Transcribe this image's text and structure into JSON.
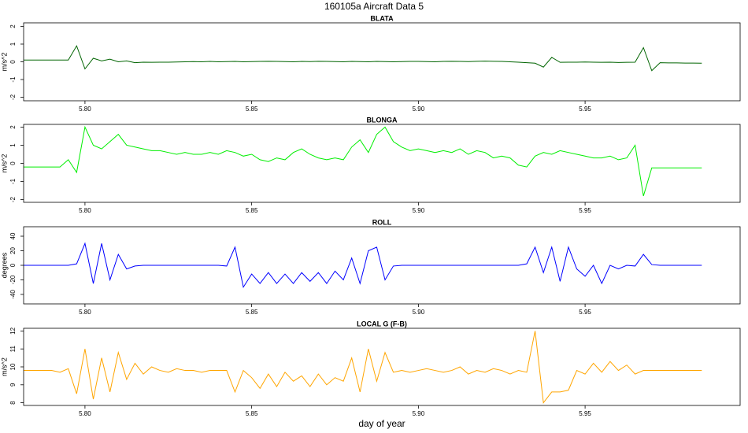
{
  "title": "160105a   Aircraft Data 5",
  "chart_data": [
    {
      "type": "line",
      "title": "BLATA",
      "ylabel": "m/s^2",
      "x": [
        5.78,
        5.7825,
        5.785,
        5.7875,
        5.79,
        5.7925,
        5.795,
        5.7975,
        5.8,
        5.8025,
        5.805,
        5.8075,
        5.81,
        5.8125,
        5.815,
        5.8175,
        5.82,
        5.8225,
        5.825,
        5.8275,
        5.83,
        5.8325,
        5.835,
        5.8375,
        5.84,
        5.8425,
        5.845,
        5.8475,
        5.85,
        5.8525,
        5.855,
        5.8575,
        5.86,
        5.8625,
        5.865,
        5.8675,
        5.87,
        5.8725,
        5.875,
        5.8775,
        5.88,
        5.8825,
        5.885,
        5.8875,
        5.89,
        5.8925,
        5.895,
        5.8975,
        5.9,
        5.9025,
        5.905,
        5.9075,
        5.91,
        5.9125,
        5.915,
        5.9175,
        5.92,
        5.9225,
        5.925,
        5.9275,
        5.93,
        5.9325,
        5.935,
        5.9375,
        5.94,
        5.9425,
        5.945,
        5.9475,
        5.95,
        5.9525,
        5.955,
        5.9575,
        5.96,
        5.9625,
        5.965,
        5.9675,
        5.97,
        5.9725,
        5.975,
        5.9775,
        5.98,
        5.9825,
        5.985
      ],
      "series": [
        {
          "color": "#006400",
          "values": [
            0.1,
            0.1,
            0.1,
            0.1,
            0.1,
            0.1,
            0.1,
            0.9,
            -0.4,
            0.2,
            0.05,
            0.15,
            0.0,
            0.05,
            -0.05,
            -0.02,
            -0.03,
            -0.02,
            -0.02,
            -0.01,
            0.0,
            0.01,
            0.0,
            0.02,
            0.0,
            0.01,
            0.02,
            0.0,
            0.01,
            0.02,
            0.03,
            0.02,
            0.01,
            0.0,
            0.02,
            0.01,
            0.03,
            0.02,
            0.01,
            0.0,
            0.02,
            0.01,
            0.0,
            0.02,
            0.01,
            0.0,
            0.01,
            0.02,
            0.02,
            0.01,
            0.0,
            0.02,
            0.03,
            0.02,
            0.01,
            0.03,
            0.04,
            0.03,
            0.02,
            0.0,
            -0.02,
            -0.05,
            -0.08,
            -0.3,
            0.25,
            -0.03,
            -0.02,
            -0.02,
            -0.01,
            -0.02,
            -0.03,
            -0.02,
            -0.04,
            -0.03,
            -0.02,
            0.8,
            -0.5,
            -0.05,
            -0.06,
            -0.06,
            -0.07,
            -0.07,
            -0.08
          ]
        }
      ],
      "xlim": [
        5.7816,
        5.9965
      ],
      "xticks": [
        {
          "value": 5.8,
          "label": "5.80"
        },
        {
          "value": 5.85,
          "label": "5.85"
        },
        {
          "value": 5.9,
          "label": "5.90"
        },
        {
          "value": 5.95,
          "label": "5.95"
        }
      ],
      "ylim": [
        -2.2,
        2.2
      ],
      "yticks": [
        -2,
        -1,
        0,
        1,
        2
      ]
    },
    {
      "type": "line",
      "title": "BLONGA",
      "ylabel": "m/s^2",
      "x": [
        5.78,
        5.7825,
        5.785,
        5.7875,
        5.79,
        5.7925,
        5.795,
        5.7975,
        5.8,
        5.8025,
        5.805,
        5.8075,
        5.81,
        5.8125,
        5.815,
        5.8175,
        5.82,
        5.8225,
        5.825,
        5.8275,
        5.83,
        5.8325,
        5.835,
        5.8375,
        5.84,
        5.8425,
        5.845,
        5.8475,
        5.85,
        5.8525,
        5.855,
        5.8575,
        5.86,
        5.8625,
        5.865,
        5.8675,
        5.87,
        5.8725,
        5.875,
        5.8775,
        5.88,
        5.8825,
        5.885,
        5.8875,
        5.89,
        5.8925,
        5.895,
        5.8975,
        5.9,
        5.9025,
        5.905,
        5.9075,
        5.91,
        5.9125,
        5.915,
        5.9175,
        5.92,
        5.9225,
        5.925,
        5.9275,
        5.93,
        5.9325,
        5.935,
        5.9375,
        5.94,
        5.9425,
        5.945,
        5.9475,
        5.95,
        5.9525,
        5.955,
        5.9575,
        5.96,
        5.9625,
        5.965,
        5.9675,
        5.97,
        5.9725,
        5.975,
        5.9775,
        5.98,
        5.9825,
        5.985
      ],
      "series": [
        {
          "color": "#00ee00",
          "values": [
            -0.2,
            -0.2,
            -0.2,
            -0.2,
            -0.2,
            -0.2,
            0.2,
            -0.5,
            2.0,
            1.0,
            0.8,
            1.2,
            1.6,
            1.0,
            0.9,
            0.8,
            0.7,
            0.7,
            0.6,
            0.5,
            0.6,
            0.5,
            0.5,
            0.6,
            0.5,
            0.7,
            0.6,
            0.4,
            0.5,
            0.2,
            0.1,
            0.3,
            0.2,
            0.6,
            0.8,
            0.5,
            0.3,
            0.2,
            0.3,
            0.2,
            0.9,
            1.3,
            0.6,
            1.6,
            2.0,
            1.2,
            0.9,
            0.7,
            0.8,
            0.7,
            0.6,
            0.7,
            0.6,
            0.8,
            0.5,
            0.7,
            0.6,
            0.3,
            0.4,
            0.3,
            -0.1,
            -0.2,
            0.4,
            0.6,
            0.5,
            0.7,
            0.6,
            0.5,
            0.4,
            0.3,
            0.3,
            0.4,
            0.2,
            0.3,
            1.0,
            -1.8,
            -0.25,
            -0.25,
            -0.25,
            -0.25,
            -0.25,
            -0.25,
            -0.25
          ]
        }
      ],
      "xlim": [
        5.7816,
        5.9965
      ],
      "xticks": [
        {
          "value": 5.8,
          "label": "5.80"
        },
        {
          "value": 5.85,
          "label": "5.85"
        },
        {
          "value": 5.9,
          "label": "5.90"
        },
        {
          "value": 5.95,
          "label": "5.95"
        }
      ],
      "ylim": [
        -2.15,
        2.15
      ],
      "yticks": [
        -2,
        -1,
        0,
        1,
        2
      ]
    },
    {
      "type": "line",
      "title": "ROLL",
      "ylabel": "degrees",
      "x": [
        5.78,
        5.7825,
        5.785,
        5.7875,
        5.79,
        5.7925,
        5.795,
        5.7975,
        5.8,
        5.8025,
        5.805,
        5.8075,
        5.81,
        5.8125,
        5.815,
        5.8175,
        5.82,
        5.8225,
        5.825,
        5.8275,
        5.83,
        5.8325,
        5.835,
        5.8375,
        5.84,
        5.8425,
        5.845,
        5.8475,
        5.85,
        5.8525,
        5.855,
        5.8575,
        5.86,
        5.8625,
        5.865,
        5.8675,
        5.87,
        5.8725,
        5.875,
        5.8775,
        5.88,
        5.8825,
        5.885,
        5.8875,
        5.89,
        5.8925,
        5.895,
        5.8975,
        5.9,
        5.9025,
        5.905,
        5.9075,
        5.91,
        5.9125,
        5.915,
        5.9175,
        5.92,
        5.9225,
        5.925,
        5.9275,
        5.93,
        5.9325,
        5.935,
        5.9375,
        5.94,
        5.9425,
        5.945,
        5.9475,
        5.95,
        5.9525,
        5.955,
        5.9575,
        5.96,
        5.9625,
        5.965,
        5.9675,
        5.97,
        5.9725,
        5.975,
        5.9775,
        5.98,
        5.9825,
        5.985
      ],
      "series": [
        {
          "color": "#0000ff",
          "values": [
            0,
            0,
            0,
            0,
            0,
            0,
            0,
            2,
            30,
            -25,
            30,
            -20,
            15,
            -5,
            -1,
            0,
            0,
            0,
            0,
            0,
            0,
            0,
            0,
            0,
            0,
            -1,
            25,
            -30,
            -12,
            -25,
            -10,
            -25,
            -12,
            -25,
            -10,
            -22,
            -10,
            -25,
            -8,
            -20,
            10,
            -25,
            20,
            25,
            -20,
            -1,
            0,
            0,
            0,
            0,
            0,
            0,
            0,
            0,
            0,
            0,
            0,
            0,
            0,
            0,
            0,
            2,
            25,
            -10,
            25,
            -22,
            25,
            -5,
            -15,
            0,
            -25,
            0,
            -5,
            0,
            -1,
            15,
            1,
            0,
            0,
            0,
            0,
            0,
            0
          ]
        }
      ],
      "xlim": [
        5.7816,
        5.9965
      ],
      "xticks": [
        {
          "value": 5.8,
          "label": "5.80"
        },
        {
          "value": 5.85,
          "label": "5.85"
        },
        {
          "value": 5.9,
          "label": "5.90"
        },
        {
          "value": 5.95,
          "label": "5.95"
        }
      ],
      "ylim": [
        -53,
        53
      ],
      "yticks": [
        -40,
        -20,
        0,
        20,
        40
      ]
    },
    {
      "type": "line",
      "title": "LOCAL G (F-B)",
      "ylabel": "m/s^2",
      "xlabel": "day of year",
      "x": [
        5.78,
        5.7825,
        5.785,
        5.7875,
        5.79,
        5.7925,
        5.795,
        5.7975,
        5.8,
        5.8025,
        5.805,
        5.8075,
        5.81,
        5.8125,
        5.815,
        5.8175,
        5.82,
        5.8225,
        5.825,
        5.8275,
        5.83,
        5.8325,
        5.835,
        5.8375,
        5.84,
        5.8425,
        5.845,
        5.8475,
        5.85,
        5.8525,
        5.855,
        5.8575,
        5.86,
        5.8625,
        5.865,
        5.8675,
        5.87,
        5.8725,
        5.875,
        5.8775,
        5.88,
        5.8825,
        5.885,
        5.8875,
        5.89,
        5.8925,
        5.895,
        5.8975,
        5.9,
        5.9025,
        5.905,
        5.9075,
        5.91,
        5.9125,
        5.915,
        5.9175,
        5.92,
        5.9225,
        5.925,
        5.9275,
        5.93,
        5.9325,
        5.935,
        5.9375,
        5.94,
        5.9425,
        5.945,
        5.9475,
        5.95,
        5.9525,
        5.955,
        5.9575,
        5.96,
        5.9625,
        5.965,
        5.9675,
        5.97,
        5.9725,
        5.975,
        5.9775,
        5.98,
        5.9825,
        5.985
      ],
      "series": [
        {
          "color": "#ffa500",
          "values": [
            9.8,
            9.8,
            9.8,
            9.8,
            9.8,
            9.7,
            9.9,
            8.5,
            11.0,
            8.2,
            10.5,
            8.6,
            10.8,
            9.3,
            10.2,
            9.6,
            10.0,
            9.8,
            9.7,
            9.9,
            9.8,
            9.8,
            9.7,
            9.8,
            9.8,
            9.8,
            8.6,
            9.8,
            9.4,
            8.8,
            9.6,
            8.9,
            9.7,
            9.2,
            9.5,
            8.9,
            9.6,
            9.0,
            9.4,
            9.2,
            10.5,
            8.6,
            11.0,
            9.2,
            10.8,
            9.7,
            9.8,
            9.7,
            9.8,
            9.9,
            9.8,
            9.7,
            9.8,
            10.0,
            9.6,
            9.8,
            9.7,
            9.9,
            9.8,
            9.6,
            9.8,
            9.7,
            12.0,
            8.0,
            8.6,
            8.6,
            8.7,
            9.8,
            9.6,
            10.2,
            9.7,
            10.3,
            9.8,
            10.1,
            9.6,
            9.8,
            9.8,
            9.8,
            9.8,
            9.8,
            9.8,
            9.8,
            9.8
          ]
        }
      ],
      "xlim": [
        5.7816,
        5.9965
      ],
      "xticks": [
        {
          "value": 5.8,
          "label": "5.80"
        },
        {
          "value": 5.85,
          "label": "5.85"
        },
        {
          "value": 5.9,
          "label": "5.90"
        },
        {
          "value": 5.95,
          "label": "5.95"
        }
      ],
      "ylim": [
        7.85,
        12.15
      ],
      "yticks": [
        8,
        9,
        10,
        11,
        12
      ]
    }
  ]
}
